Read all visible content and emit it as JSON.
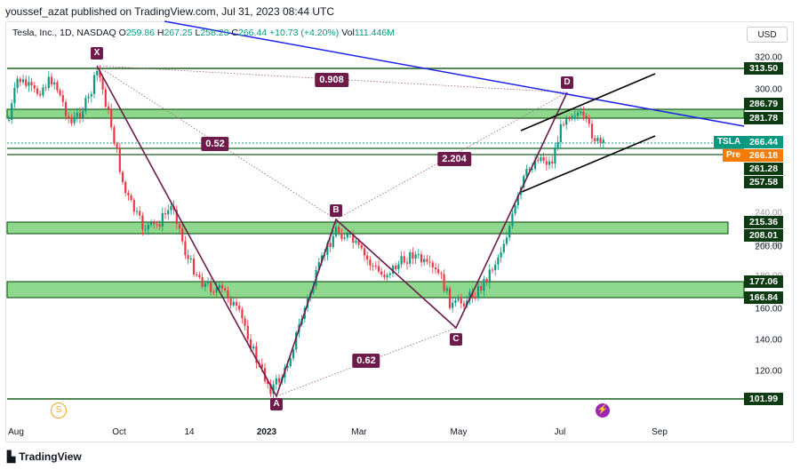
{
  "publisher_line": "youssef_azat published on TradingView.com, Jul 31, 2023 08:44 UTC",
  "legend": {
    "symbol": "Tesla, Inc., 1D, NASDAQ",
    "open_label": "O",
    "open": "259.86",
    "high_label": "H",
    "high": "267.25",
    "low_label": "L",
    "low": "258.23",
    "close_label": "C",
    "close": "266.44",
    "change": "+10.73 (+4.20%)",
    "volume_label": "Vol",
    "volume": "111.446M"
  },
  "currency_button": "USD",
  "price_axis_ticks": [
    "320.00",
    "300.00",
    "240.00",
    "220.00",
    "200.00",
    "180.00",
    "160.00",
    "140.00",
    "120.00"
  ],
  "levels": [
    "313.50",
    "286.79",
    "281.78",
    "261.28",
    "257.58",
    "215.36",
    "208.01",
    "177.06",
    "166.84",
    "101.99"
  ],
  "last_price": {
    "symbol": "TSLA",
    "value": "266.44"
  },
  "pre_market": {
    "label": "Pre",
    "value": "266.18"
  },
  "time_axis": [
    "Aug",
    "Oct",
    "14",
    "2023",
    "Mar",
    "May",
    "Jul",
    "Sep"
  ],
  "pattern_points": [
    "X",
    "A",
    "B",
    "C",
    "D"
  ],
  "ratios": [
    "0.908",
    "0.52",
    "2.204",
    "0.62"
  ],
  "event_icons": [
    {
      "name": "dividend-icon",
      "glyph": "S"
    },
    {
      "name": "earnings-icon",
      "glyph": "⚡"
    }
  ],
  "colors": {
    "zone_fill": "#8ed88e",
    "zone_border": "#1b5e20",
    "pattern": "#6d1b4a",
    "trendline": "#1e22e6",
    "channel": "#000000",
    "up": "#089981",
    "down": "#f23645"
  },
  "brand": "TradingView"
}
